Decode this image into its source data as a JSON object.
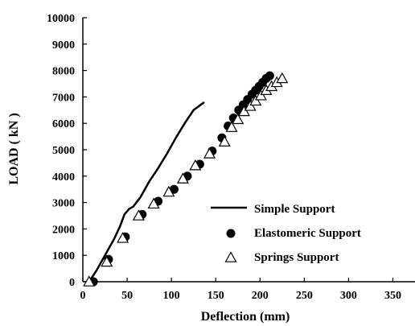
{
  "chart_data": {
    "type": "scatter",
    "title": "",
    "xlabel": "Deflection  (mm)",
    "ylabel": "LOAD  ( kN )",
    "xlim": [
      0,
      375
    ],
    "ylim": [
      0,
      10000
    ],
    "x_ticks": [
      0,
      50,
      100,
      150,
      200,
      250,
      300,
      350
    ],
    "y_ticks": [
      0,
      1000,
      2000,
      3000,
      4000,
      5000,
      6000,
      7000,
      8000,
      9000,
      10000
    ],
    "grid": false,
    "legend_position": "bottom-right",
    "series": [
      {
        "name": "Simple Support",
        "style": "line",
        "color": "#000000",
        "x": [
          7,
          15,
          25,
          35,
          42,
          47,
          52,
          57,
          65,
          75,
          85,
          95,
          105,
          115,
          125,
          137
        ],
        "y": [
          0,
          400,
          1000,
          1600,
          2100,
          2550,
          2750,
          2850,
          3200,
          3800,
          4300,
          4850,
          5450,
          6000,
          6500,
          6800
        ]
      },
      {
        "name": "Elastomeric Support",
        "style": "filled-circle",
        "color": "#000000",
        "x": [
          12,
          29,
          48,
          67,
          85,
          103,
          118,
          132,
          146,
          157,
          164,
          170,
          176,
          181,
          186,
          191,
          195,
          199,
          203,
          207,
          211
        ],
        "y": [
          0,
          850,
          1700,
          2550,
          3050,
          3500,
          4000,
          4450,
          4950,
          5450,
          5900,
          6200,
          6500,
          6700,
          6900,
          7100,
          7250,
          7400,
          7550,
          7700,
          7800
        ]
      },
      {
        "name": "Springs Support",
        "style": "open-triangle",
        "color": "#000000",
        "x": [
          7,
          27,
          45,
          63,
          80,
          97,
          113,
          127,
          143,
          160,
          168,
          175,
          182,
          189,
          195,
          201,
          207,
          213,
          219,
          225
        ],
        "y": [
          0,
          750,
          1650,
          2500,
          2950,
          3400,
          3900,
          4400,
          4850,
          5300,
          5850,
          6150,
          6450,
          6650,
          6850,
          7050,
          7250,
          7400,
          7550,
          7700
        ]
      }
    ]
  }
}
